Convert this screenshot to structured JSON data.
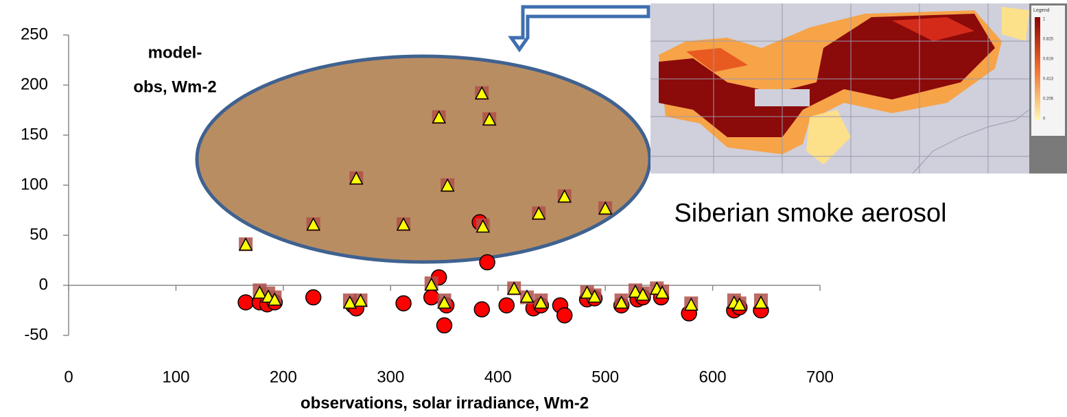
{
  "chart_data": {
    "type": "scatter",
    "xlabel": "observations, solar irradiance, Wm-2",
    "ylabel": [
      "model-",
      "obs, Wm-2"
    ],
    "annotation": "Siberian smoke aerosol",
    "xlim": [
      0,
      700
    ],
    "xticks": [
      0,
      100,
      200,
      300,
      400,
      500,
      600,
      700
    ],
    "ylim": [
      -50,
      250
    ],
    "yticks": [
      -50,
      0,
      50,
      100,
      150,
      200,
      250
    ],
    "series": [
      {
        "marker": "circle",
        "color": "#ff0000",
        "x": [
          165,
          178,
          185,
          192,
          228,
          265,
          268,
          312,
          338,
          345,
          350,
          352,
          385,
          383,
          390,
          408,
          433,
          440,
          458,
          462,
          483,
          490,
          515,
          530,
          535,
          552,
          578,
          620,
          625,
          645
        ],
        "values": [
          -17,
          -17,
          -19,
          -17,
          -12,
          -20,
          -23,
          -18,
          -12,
          8,
          -40,
          -20,
          -24,
          63,
          23,
          -20,
          -23,
          -20,
          -20,
          -30,
          -14,
          -13,
          -20,
          -14,
          -12,
          -12,
          -28,
          -25,
          -22,
          -25
        ]
      },
      {
        "marker": "square",
        "color": "#b0504a",
        "x": [
          165,
          178,
          186,
          192,
          228,
          262,
          268,
          272,
          312,
          338,
          345,
          350,
          353,
          385,
          386,
          392,
          415,
          427,
          438,
          440,
          462,
          483,
          490,
          500,
          515,
          528,
          535,
          548,
          553,
          580,
          620,
          625,
          645
        ],
        "values": [
          41,
          -5,
          -8,
          -12,
          61,
          -15,
          107,
          -15,
          61,
          2,
          168,
          -15,
          100,
          192,
          60,
          166,
          -3,
          -12,
          72,
          -15,
          89,
          -7,
          -10,
          77,
          -15,
          -5,
          -8,
          -3,
          -6,
          -18,
          -15,
          -18,
          -15
        ]
      },
      {
        "marker": "triangle",
        "color": "#ffff00",
        "x": [
          165,
          178,
          186,
          192,
          228,
          262,
          268,
          272,
          312,
          338,
          345,
          350,
          353,
          385,
          386,
          392,
          415,
          427,
          438,
          440,
          462,
          483,
          490,
          500,
          515,
          528,
          535,
          548,
          553,
          580,
          620,
          625,
          645
        ],
        "values": [
          40,
          -8,
          -12,
          -15,
          60,
          -18,
          106,
          -16,
          60,
          0,
          167,
          -18,
          99,
          191,
          58,
          165,
          -4,
          -12,
          71,
          -18,
          88,
          -8,
          -12,
          76,
          -18,
          -7,
          -10,
          -4,
          -8,
          -20,
          -18,
          -20,
          -18
        ]
      }
    ]
  },
  "map": {
    "legend_title": "Legend",
    "legend_labels": [
      "1",
      "0.825",
      "0.619",
      "0.413",
      "0.206",
      "0"
    ]
  }
}
